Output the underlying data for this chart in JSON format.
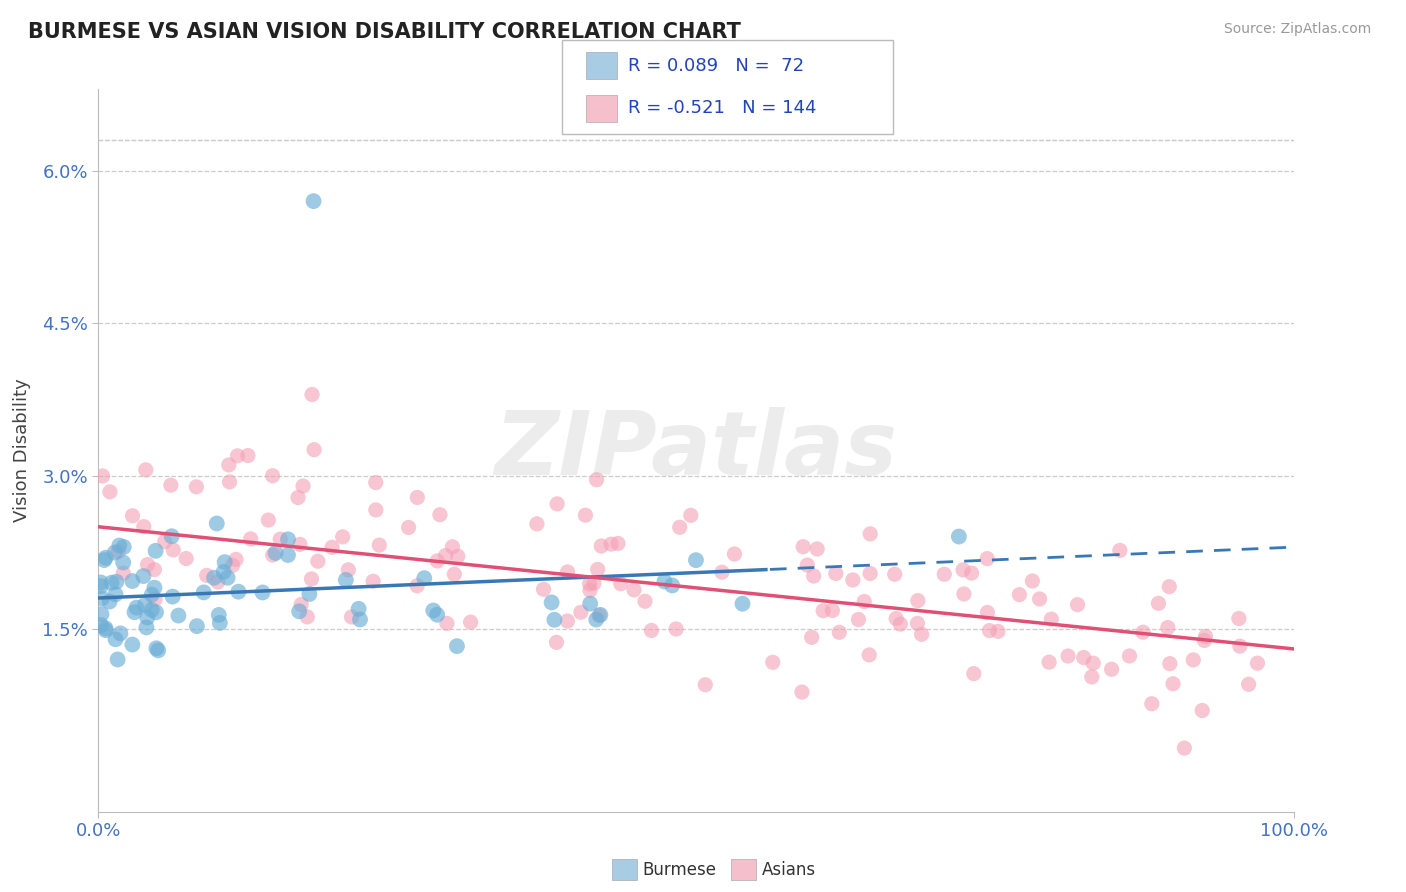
{
  "title": "BURMESE VS ASIAN VISION DISABILITY CORRELATION CHART",
  "source": "Source: ZipAtlas.com",
  "ylabel": "Vision Disability",
  "xlim": [
    0.0,
    1.0
  ],
  "ylim": [
    -0.003,
    0.068
  ],
  "yticks": [
    0.015,
    0.03,
    0.045,
    0.06
  ],
  "ytick_labels": [
    "1.5%",
    "3.0%",
    "4.5%",
    "6.0%"
  ],
  "xtick_labels": [
    "0.0%",
    "100.0%"
  ],
  "legend_r1": "R = 0.089",
  "legend_n1": "N =  72",
  "legend_r2": "R = -0.521",
  "legend_n2": "N = 144",
  "burmese_color": "#6baed6",
  "asian_color": "#f4a0b5",
  "burmese_legend_color": "#a8cce4",
  "asian_legend_color": "#f5c0cc",
  "trend_blue": "#3a78b5",
  "trend_pink": "#e05075",
  "grid_color": "#cccccc",
  "background_color": "#ffffff",
  "title_color": "#222222",
  "axis_label_color": "#444444",
  "tick_color": "#4472c4",
  "source_color": "#999999",
  "legend_text_color": "#2244bb"
}
